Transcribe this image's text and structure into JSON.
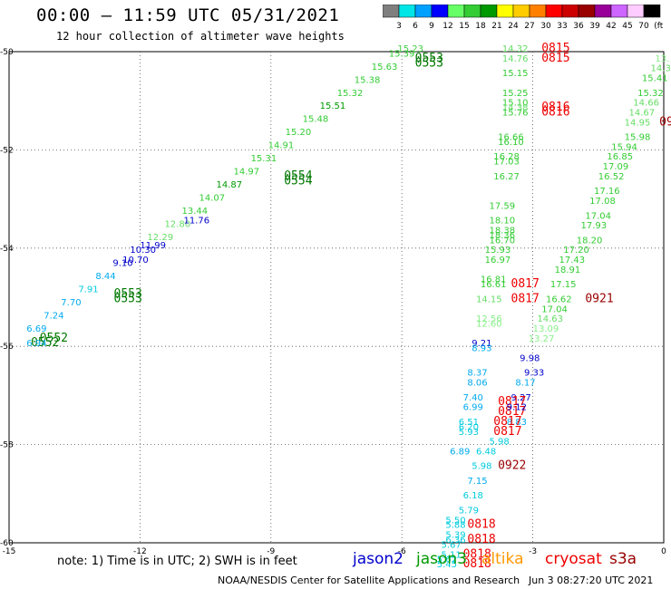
{
  "title": "00:00 – 11:59 UTC 05/31/2021",
  "subtitle": "12 hour collection of altimeter wave heights",
  "colorbar": {
    "labels": [
      "3",
      "6",
      "9",
      "12",
      "15",
      "18",
      "21",
      "24",
      "27",
      "30",
      "33",
      "36",
      "39",
      "42",
      "45",
      "70",
      "(ft)"
    ],
    "colors": [
      "#7f7f7f",
      "#00e5e5",
      "#00a0ff",
      "#0000ff",
      "#66ff66",
      "#33cc33",
      "#009900",
      "#ffff00",
      "#ffcc00",
      "#ff8000",
      "#ff0000",
      "#cc0000",
      "#990000",
      "#990099",
      "#cc66ff",
      "#ffccff",
      "#000000"
    ]
  },
  "axes": {
    "x_ticks": [
      "-15",
      "-12",
      "-9",
      "-6",
      "-3",
      "0"
    ],
    "y_ticks": [
      "-50",
      "-52",
      "-54",
      "-56",
      "-58",
      "-60"
    ]
  },
  "note": "note: 1) Time is in UTC; 2) SWH is in feet",
  "legend": [
    {
      "name": "jason2",
      "color": "#0000cc"
    },
    {
      "name": "jason3",
      "color": "#009900"
    },
    {
      "name": "altika",
      "color": "#ff9900"
    },
    {
      "name": "cryosat",
      "color": "#ee0000"
    },
    {
      "name": "s3a",
      "color": "#990000"
    }
  ],
  "footer": {
    "credit": "NOAA/NESDIS Center for Satellite Applications and Research",
    "timestamp": "Jun  3 08:27:20 UTC 2021"
  },
  "track_labels": [
    {
      "t": "15.23",
      "c": "#44cc44",
      "lon": -6.1,
      "lat": -50.0
    },
    {
      "t": "0553",
      "c": "#007700",
      "lon": -5.7,
      "lat": -50.2
    },
    {
      "t": "0553",
      "c": "#007700",
      "lon": -5.7,
      "lat": -50.3
    },
    {
      "t": "11.76",
      "c": "#0000cc",
      "lon": -11.0,
      "lat": -53.5
    },
    {
      "t": "11.99",
      "c": "#0000cc",
      "lon": -12.0,
      "lat": -54.0
    },
    {
      "t": "10.70",
      "c": "#0000cc",
      "lon": -12.4,
      "lat": -54.3
    },
    {
      "t": "0553",
      "c": "#007700",
      "lon": -12.6,
      "lat": -55.0
    },
    {
      "t": "0553",
      "c": "#007700",
      "lon": -12.6,
      "lat": -55.1
    },
    {
      "t": "0552",
      "c": "#007700",
      "lon": -14.3,
      "lat": -55.9
    },
    {
      "t": "0552",
      "c": "#007700",
      "lon": -14.5,
      "lat": -56.0
    },
    {
      "t": "6.94",
      "c": "#00aaee",
      "lon": -14.6,
      "lat": -56.0
    },
    {
      "t": "0554",
      "c": "#007700",
      "lon": -8.7,
      "lat": -52.6
    },
    {
      "t": "0554",
      "c": "#007700",
      "lon": -8.7,
      "lat": -52.7
    },
    {
      "t": "14.32",
      "c": "#66dd66",
      "lon": -3.7,
      "lat": -50.0
    },
    {
      "t": "14.76",
      "c": "#66dd66",
      "lon": -3.7,
      "lat": -50.2
    },
    {
      "t": "15.15",
      "c": "#33cc33",
      "lon": -3.7,
      "lat": -50.5
    },
    {
      "t": "15.25",
      "c": "#33cc33",
      "lon": -3.7,
      "lat": -50.9
    },
    {
      "t": "15.10",
      "c": "#33cc33",
      "lon": -3.7,
      "lat": -51.1
    },
    {
      "t": "14.38",
      "c": "#66dd66",
      "lon": -3.7,
      "lat": -51.2
    },
    {
      "t": "15.76",
      "c": "#33cc33",
      "lon": -3.7,
      "lat": -51.3
    },
    {
      "t": "16.66",
      "c": "#33cc33",
      "lon": -3.8,
      "lat": -51.8
    },
    {
      "t": "16.10",
      "c": "#33cc33",
      "lon": -3.8,
      "lat": -51.9
    },
    {
      "t": "16.28",
      "c": "#33cc33",
      "lon": -3.9,
      "lat": -52.2
    },
    {
      "t": "17.03",
      "c": "#33cc33",
      "lon": -3.9,
      "lat": -52.3
    },
    {
      "t": "16.27",
      "c": "#33cc33",
      "lon": -3.9,
      "lat": -52.6
    },
    {
      "t": "17.59",
      "c": "#33cc33",
      "lon": -4.0,
      "lat": -53.2
    },
    {
      "t": "18.10",
      "c": "#33cc33",
      "lon": -4.0,
      "lat": -53.5
    },
    {
      "t": "18.38",
      "c": "#33cc33",
      "lon": -4.0,
      "lat": -53.7
    },
    {
      "t": "18.36",
      "c": "#33cc33",
      "lon": -4.0,
      "lat": -53.8
    },
    {
      "t": "16.70",
      "c": "#33cc33",
      "lon": -4.0,
      "lat": -53.9
    },
    {
      "t": "15.93",
      "c": "#33cc33",
      "lon": -4.1,
      "lat": -54.1
    },
    {
      "t": "16.97",
      "c": "#33cc33",
      "lon": -4.1,
      "lat": -54.3
    },
    {
      "t": "16.81",
      "c": "#33cc33",
      "lon": -4.2,
      "lat": -54.7
    },
    {
      "t": "16.61",
      "c": "#33cc33",
      "lon": -4.2,
      "lat": -54.8
    },
    {
      "t": "14.15",
      "c": "#66dd66",
      "lon": -4.3,
      "lat": -55.1
    },
    {
      "t": "12.56",
      "c": "#88ee88",
      "lon": -4.3,
      "lat": -55.5
    },
    {
      "t": "12.60",
      "c": "#88ee88",
      "lon": -4.3,
      "lat": -55.6
    },
    {
      "t": "0815",
      "c": "#ee0000",
      "lon": -2.8,
      "lat": -50.0
    },
    {
      "t": "0815",
      "c": "#ee0000",
      "lon": -2.8,
      "lat": -50.2
    },
    {
      "t": "0816",
      "c": "#ee0000",
      "lon": -2.8,
      "lat": -51.2
    },
    {
      "t": "0816",
      "c": "#ee0000",
      "lon": -2.8,
      "lat": -51.3
    },
    {
      "t": "0817",
      "c": "#ee0000",
      "lon": -3.5,
      "lat": -54.8
    },
    {
      "t": "0817",
      "c": "#ee0000",
      "lon": -3.5,
      "lat": -55.1
    },
    {
      "t": "0921",
      "c": "#990000",
      "lon": -1.8,
      "lat": -55.1
    },
    {
      "t": "0922",
      "c": "#990000",
      "lon": -3.8,
      "lat": -58.5
    },
    {
      "t": "17.20",
      "c": "#33cc33",
      "lon": -2.3,
      "lat": -54.1
    },
    {
      "t": "17.43",
      "c": "#33cc33",
      "lon": -2.4,
      "lat": -54.3
    },
    {
      "t": "18.91",
      "c": "#33cc33",
      "lon": -2.5,
      "lat": -54.5
    },
    {
      "t": "17.15",
      "c": "#33cc33",
      "lon": -2.6,
      "lat": -54.8
    },
    {
      "t": "16.62",
      "c": "#33cc33",
      "lon": -2.7,
      "lat": -55.1
    },
    {
      "t": "17.04",
      "c": "#33cc33",
      "lon": -2.8,
      "lat": -55.3
    },
    {
      "t": "14.63",
      "c": "#66dd66",
      "lon": -2.9,
      "lat": -55.5
    },
    {
      "t": "13.09",
      "c": "#88ee88",
      "lon": -3.0,
      "lat": -55.7
    },
    {
      "t": "13.27",
      "c": "#88ee88",
      "lon": -3.1,
      "lat": -55.9
    },
    {
      "t": "18.20",
      "c": "#33cc33",
      "lon": -2.0,
      "lat": -53.9
    },
    {
      "t": "17.93",
      "c": "#33cc33",
      "lon": -1.9,
      "lat": -53.6
    },
    {
      "t": "17.04",
      "c": "#33cc33",
      "lon": -1.8,
      "lat": -53.4
    },
    {
      "t": "17.08",
      "c": "#33cc33",
      "lon": -1.7,
      "lat": -53.1
    },
    {
      "t": "17.16",
      "c": "#33cc33",
      "lon": -1.6,
      "lat": -52.9
    },
    {
      "t": "16.52",
      "c": "#33cc33",
      "lon": -1.5,
      "lat": -52.6
    },
    {
      "t": "17.09",
      "c": "#33cc33",
      "lon": -1.4,
      "lat": -52.4
    },
    {
      "t": "16.85",
      "c": "#33cc33",
      "lon": -1.3,
      "lat": -52.2
    },
    {
      "t": "15.94",
      "c": "#33cc33",
      "lon": -1.2,
      "lat": -52.0
    },
    {
      "t": "15.98",
      "c": "#33cc33",
      "lon": -0.9,
      "lat": -51.8
    },
    {
      "t": "14.95",
      "c": "#66dd66",
      "lon": -0.9,
      "lat": -51.5
    },
    {
      "t": "14.67",
      "c": "#66dd66",
      "lon": -0.8,
      "lat": -51.3
    },
    {
      "t": "14.66",
      "c": "#66dd66",
      "lon": -0.7,
      "lat": -51.1
    },
    {
      "t": "15.32",
      "c": "#33cc33",
      "lon": -0.6,
      "lat": -50.9
    },
    {
      "t": "15.41",
      "c": "#33cc33",
      "lon": -0.5,
      "lat": -50.6
    },
    {
      "t": "14.3",
      "c": "#66dd66",
      "lon": -0.3,
      "lat": -50.4
    },
    {
      "t": "13.",
      "c": "#88ee88",
      "lon": -0.2,
      "lat": -50.2
    },
    {
      "t": "09",
      "c": "#990000",
      "lon": -0.1,
      "lat": -51.5
    },
    {
      "t": "9.21",
      "c": "#0000cc",
      "lon": -4.4,
      "lat": -56.0
    },
    {
      "t": "8.93",
      "c": "#00aaee",
      "lon": -4.4,
      "lat": -56.1
    },
    {
      "t": "9.98",
      "c": "#0000cc",
      "lon": -3.3,
      "lat": -56.3
    },
    {
      "t": "9.33",
      "c": "#0000cc",
      "lon": -3.2,
      "lat": -56.6
    },
    {
      "t": "8.37",
      "c": "#00aaee",
      "lon": -4.5,
      "lat": -56.6
    },
    {
      "t": "8.06",
      "c": "#00aaee",
      "lon": -4.5,
      "lat": -56.8
    },
    {
      "t": "8.17",
      "c": "#00aaee",
      "lon": -3.4,
      "lat": -56.8
    },
    {
      "t": "9.27",
      "c": "#0000cc",
      "lon": -3.5,
      "lat": -57.1
    },
    {
      "t": "7.40",
      "c": "#00aaee",
      "lon": -4.6,
      "lat": -57.1
    },
    {
      "t": "6.99",
      "c": "#00aaee",
      "lon": -4.6,
      "lat": -57.3
    },
    {
      "t": "0817",
      "c": "#ee0000",
      "lon": -3.8,
      "lat": -57.2
    },
    {
      "t": "0817",
      "c": "#ee0000",
      "lon": -3.8,
      "lat": -57.4
    },
    {
      "t": "9.12",
      "c": "#0000cc",
      "lon": -3.6,
      "lat": -57.3
    },
    {
      "t": "8.83",
      "c": "#00aaee",
      "lon": -3.6,
      "lat": -57.6
    },
    {
      "t": "6.51",
      "c": "#00ccdd",
      "lon": -4.7,
      "lat": -57.6
    },
    {
      "t": "6.20",
      "c": "#00ccdd",
      "lon": -4.7,
      "lat": -57.7
    },
    {
      "t": "5.93",
      "c": "#00ccdd",
      "lon": -4.7,
      "lat": -57.8
    },
    {
      "t": "0817",
      "c": "#ee0000",
      "lon": -3.9,
      "lat": -57.6
    },
    {
      "t": "0817",
      "c": "#ee0000",
      "lon": -3.9,
      "lat": -57.8
    },
    {
      "t": "5.98",
      "c": "#00ccdd",
      "lon": -4.0,
      "lat": -58.0
    },
    {
      "t": "6.89",
      "c": "#00aaee",
      "lon": -4.9,
      "lat": -58.2
    },
    {
      "t": "6.48",
      "c": "#00ccdd",
      "lon": -4.3,
      "lat": -58.2
    },
    {
      "t": "5.98",
      "c": "#00ccdd",
      "lon": -4.4,
      "lat": -58.5
    },
    {
      "t": "7.15",
      "c": "#00aaee",
      "lon": -4.5,
      "lat": -58.8
    },
    {
      "t": "6.18",
      "c": "#00ccdd",
      "lon": -4.6,
      "lat": -59.1
    },
    {
      "t": "5.79",
      "c": "#00ccdd",
      "lon": -4.7,
      "lat": -59.4
    },
    {
      "t": "5.50",
      "c": "#00ccdd",
      "lon": -5.0,
      "lat": -59.6
    },
    {
      "t": "5.88",
      "c": "#00ccdd",
      "lon": -5.0,
      "lat": -59.7
    },
    {
      "t": "5.39",
      "c": "#00ccdd",
      "lon": -5.0,
      "lat": -59.9
    },
    {
      "t": "6.36",
      "c": "#00ccdd",
      "lon": -5.0,
      "lat": -60.0
    },
    {
      "t": "0818",
      "c": "#ee0000",
      "lon": -4.5,
      "lat": -59.7
    },
    {
      "t": "0818",
      "c": "#ee0000",
      "lon": -4.5,
      "lat": -60.0
    },
    {
      "t": "5.67",
      "c": "#00ccdd",
      "lon": -5.1,
      "lat": -60.1
    },
    {
      "t": "5.11",
      "c": "#00ccdd",
      "lon": -5.1,
      "lat": -60.3
    },
    {
      "t": "5.62",
      "c": "#00ccdd",
      "lon": -5.2,
      "lat": -60.4
    },
    {
      "t": "5.45",
      "c": "#00ccdd",
      "lon": -5.2,
      "lat": -60.5
    },
    {
      "t": "0818",
      "c": "#ee0000",
      "lon": -4.6,
      "lat": -60.3
    },
    {
      "t": "0818",
      "c": "#ee0000",
      "lon": -4.6,
      "lat": -60.5
    }
  ],
  "diagonal_track": {
    "color_values": [
      "#00aaee",
      "#00aaee",
      "#00aaee",
      "#00ccdd",
      "#00aaee",
      "#0000cc",
      "#0000cc",
      "#66dd66",
      "#66dd66",
      "#33cc33",
      "#33cc33",
      "#009900",
      "#33cc33",
      "#33cc33",
      "#33cc33",
      "#33cc33",
      "#33cc33",
      "#009900",
      "#33cc33",
      "#33cc33",
      "#33cc33",
      "#33cc33"
    ],
    "values": [
      "6.69",
      "7.24",
      "7.70",
      "7.91",
      "8.44",
      "9.10",
      "10.30",
      "12.29",
      "12.80",
      "13.44",
      "14.07",
      "14.87",
      "14.97",
      "15.31",
      "14.91",
      "15.20",
      "15.48",
      "15.51",
      "15.32",
      "15.38",
      "15.63",
      "15.39"
    ],
    "start": [
      -14.6,
      -55.7
    ],
    "end": [
      -6.3,
      -50.1
    ]
  }
}
